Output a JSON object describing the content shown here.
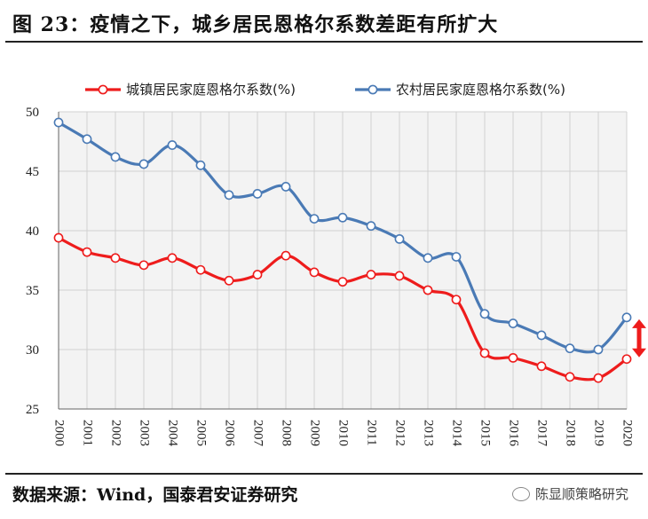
{
  "title": "图 23：疫情之下，城乡居民恩格尔系数差距有所扩大",
  "source": "数据来源：Wind，国泰君安证券研究",
  "watermark": "陈显顺策略研究",
  "colors": {
    "urban": "#ee1c1c",
    "rural": "#4a7ab5",
    "arrow": "#ee1c1c",
    "grid": "#d0d0d0"
  },
  "chart_data": {
    "type": "line",
    "x": [
      "2000",
      "2001",
      "2002",
      "2003",
      "2004",
      "2005",
      "2006",
      "2007",
      "2008",
      "2009",
      "2010",
      "2011",
      "2012",
      "2013",
      "2014",
      "2015",
      "2016",
      "2017",
      "2018",
      "2019",
      "2020"
    ],
    "series": [
      {
        "name": "城镇居民家庭恩格尔系数(%)",
        "color": "#ee1c1c",
        "values": [
          39.4,
          38.2,
          37.7,
          37.1,
          37.7,
          36.7,
          35.8,
          36.3,
          37.9,
          36.5,
          35.7,
          36.3,
          36.2,
          35.0,
          34.2,
          29.7,
          29.3,
          28.6,
          27.7,
          27.6,
          29.2
        ]
      },
      {
        "name": "农村居民家庭恩格尔系数(%)",
        "color": "#4a7ab5",
        "values": [
          49.1,
          47.7,
          46.2,
          45.6,
          47.2,
          45.5,
          43.0,
          43.1,
          43.7,
          41.0,
          41.1,
          40.4,
          39.3,
          37.7,
          37.8,
          33.0,
          32.2,
          31.2,
          30.1,
          30.0,
          32.7
        ]
      }
    ],
    "ylim": [
      25,
      50
    ],
    "yticks": [
      25,
      30,
      35,
      40,
      45,
      50
    ],
    "grid": true,
    "legend": "top",
    "annotation": "double-headed arrow marking the gap in 2020"
  }
}
